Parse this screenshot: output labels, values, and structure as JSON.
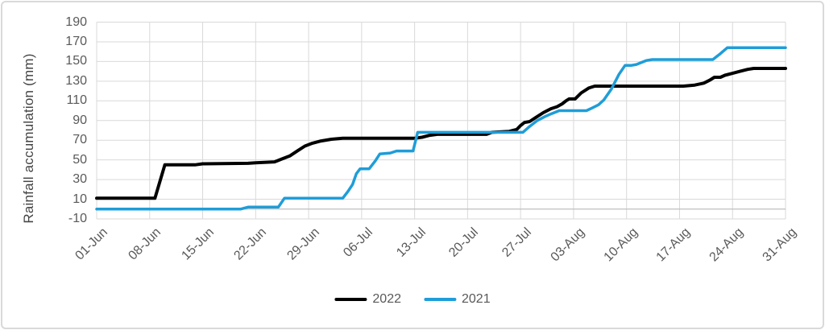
{
  "chart_data": {
    "type": "line",
    "title": "",
    "xlabel": "",
    "ylabel": "Rainfall accumulation (mm)",
    "ylim": [
      -10,
      190
    ],
    "yticks": [
      190,
      170,
      150,
      130,
      110,
      90,
      70,
      50,
      30,
      10,
      -10
    ],
    "xlim_days": [
      0,
      91
    ],
    "x_tick_days": [
      0,
      7,
      14,
      21,
      28,
      35,
      42,
      49,
      56,
      63,
      70,
      77,
      84,
      91
    ],
    "x_tick_labels": [
      "01-Jun",
      "08-Jun",
      "15-Jun",
      "22-Jun",
      "29-Jun",
      "06-Jul",
      "13-Jul",
      "20-Jul",
      "27-Jul",
      "03-Aug",
      "10-Aug",
      "17-Aug",
      "24-Aug",
      "31-Aug"
    ],
    "grid": true,
    "legend_position": "bottom-center",
    "colors": {
      "gridline": "#d9d9d9",
      "axis_line": "#bfbfbf",
      "tick_label": "#595959",
      "series_2022": "#000000",
      "series_2021": "#1f9dd8"
    },
    "series": [
      {
        "name": "2022",
        "color": "#000000",
        "width": 4,
        "points": [
          [
            0,
            11
          ],
          [
            7,
            11
          ],
          [
            7.7,
            11
          ],
          [
            9,
            45
          ],
          [
            13,
            45
          ],
          [
            14,
            46
          ],
          [
            20,
            46.5
          ],
          [
            21,
            47
          ],
          [
            23.5,
            48
          ],
          [
            24.5,
            51
          ],
          [
            25.5,
            54
          ],
          [
            26.5,
            59
          ],
          [
            27.5,
            64
          ],
          [
            28.5,
            67
          ],
          [
            29.5,
            69
          ],
          [
            31,
            71
          ],
          [
            32.5,
            72
          ],
          [
            42,
            72
          ],
          [
            43,
            73
          ],
          [
            44,
            75
          ],
          [
            45,
            76
          ],
          [
            51.5,
            76
          ],
          [
            52.2,
            78
          ],
          [
            54.5,
            79
          ],
          [
            55.5,
            81
          ],
          [
            56,
            85
          ],
          [
            56.5,
            88
          ],
          [
            57.2,
            89
          ],
          [
            58,
            93
          ],
          [
            59,
            98
          ],
          [
            60,
            102
          ],
          [
            60.8,
            104
          ],
          [
            61.5,
            107
          ],
          [
            62,
            110
          ],
          [
            62.4,
            112
          ],
          [
            63.2,
            112
          ],
          [
            64,
            118
          ],
          [
            65,
            123
          ],
          [
            65.8,
            125
          ],
          [
            77.5,
            125
          ],
          [
            79,
            126
          ],
          [
            80.2,
            128
          ],
          [
            81,
            131
          ],
          [
            81.6,
            134
          ],
          [
            82.4,
            134
          ],
          [
            83,
            136
          ],
          [
            84,
            138
          ],
          [
            85,
            140
          ],
          [
            86,
            142
          ],
          [
            86.8,
            143
          ],
          [
            91,
            143
          ]
        ]
      },
      {
        "name": "2021",
        "color": "#1f9dd8",
        "width": 3.5,
        "points": [
          [
            0,
            0
          ],
          [
            19,
            0
          ],
          [
            20,
            2
          ],
          [
            24,
            2
          ],
          [
            24.8,
            11
          ],
          [
            32.5,
            11
          ],
          [
            33.2,
            18
          ],
          [
            33.8,
            25
          ],
          [
            34.3,
            36
          ],
          [
            34.8,
            41
          ],
          [
            36,
            41
          ],
          [
            36.8,
            49
          ],
          [
            37.4,
            56
          ],
          [
            38.8,
            57
          ],
          [
            39.6,
            59
          ],
          [
            41.8,
            59
          ],
          [
            42.4,
            78
          ],
          [
            56.3,
            78
          ],
          [
            57.2,
            84
          ],
          [
            58.2,
            90
          ],
          [
            59.2,
            94
          ],
          [
            60.1,
            97
          ],
          [
            61.1,
            100
          ],
          [
            64.7,
            100
          ],
          [
            65.5,
            103
          ],
          [
            66.3,
            106
          ],
          [
            67,
            111
          ],
          [
            68,
            122
          ],
          [
            69,
            137
          ],
          [
            69.8,
            146
          ],
          [
            70.6,
            146
          ],
          [
            71.3,
            147
          ],
          [
            72.6,
            151
          ],
          [
            73.4,
            152
          ],
          [
            81.4,
            152
          ],
          [
            82.4,
            158
          ],
          [
            83.3,
            164
          ],
          [
            91,
            164
          ]
        ]
      }
    ],
    "legend": [
      {
        "label": "2022"
      },
      {
        "label": "2021"
      }
    ]
  }
}
